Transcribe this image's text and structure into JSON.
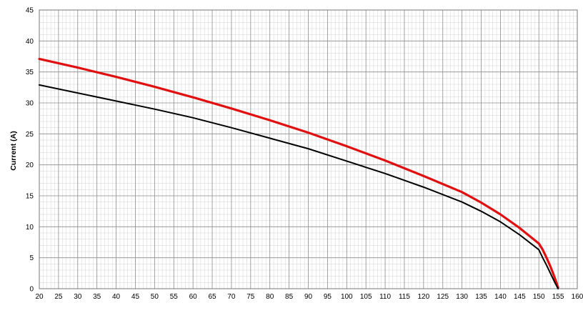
{
  "chart_data": {
    "type": "line",
    "title": "",
    "xlabel": "",
    "ylabel": "Current (A)",
    "xlim": [
      20,
      160
    ],
    "ylim": [
      0,
      45
    ],
    "x_ticks": [
      "20",
      "25",
      "30",
      "35",
      "40",
      "45",
      "50",
      "55",
      "60",
      "65",
      "70",
      "75",
      "80",
      "85",
      "90",
      "95",
      "100",
      "105",
      "110",
      "115",
      "120",
      "125",
      "130",
      "135",
      "140",
      "145",
      "150",
      "155",
      "160"
    ],
    "y_ticks": [
      "0",
      "5",
      "10",
      "15",
      "20",
      "25",
      "30",
      "35",
      "40",
      "45"
    ],
    "grid": true,
    "legend": "none",
    "series": [
      {
        "color": "#e01010",
        "x": [
          20,
          30,
          40,
          50,
          60,
          70,
          80,
          90,
          100,
          110,
          120,
          130,
          135,
          140,
          145,
          150,
          151,
          152,
          153,
          154,
          155
        ],
        "y": [
          37.1,
          35.7,
          34.2,
          32.6,
          30.9,
          29.1,
          27.2,
          25.2,
          23.0,
          20.7,
          18.2,
          15.6,
          13.9,
          12.0,
          9.8,
          7.3,
          6.3,
          5.0,
          3.6,
          2.0,
          0.2
        ]
      },
      {
        "color": "#000000",
        "x": [
          20,
          30,
          40,
          50,
          60,
          70,
          80,
          90,
          100,
          110,
          120,
          130,
          135,
          140,
          145,
          150,
          151,
          152,
          153,
          154,
          155
        ],
        "y": [
          32.9,
          31.6,
          30.3,
          29.0,
          27.6,
          26.0,
          24.3,
          22.6,
          20.6,
          18.6,
          16.4,
          14.0,
          12.5,
          10.8,
          8.7,
          6.3,
          5.0,
          3.8,
          2.5,
          1.2,
          0.0
        ]
      }
    ]
  }
}
